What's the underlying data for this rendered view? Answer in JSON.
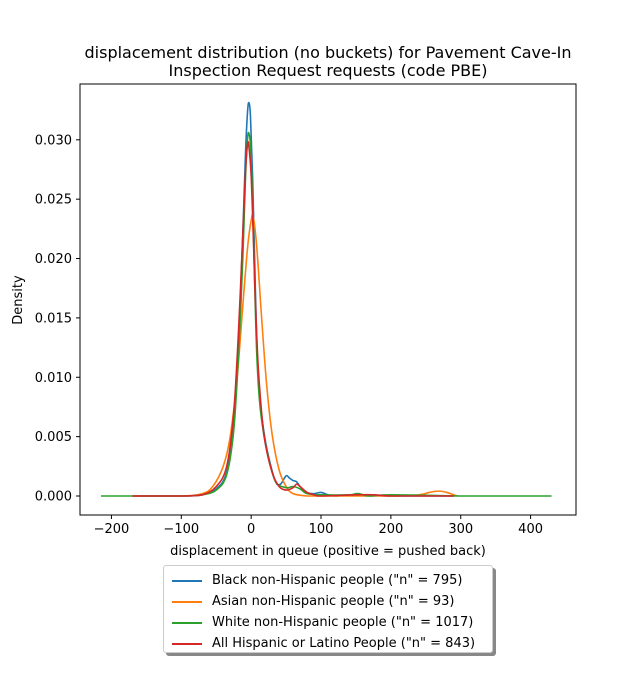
{
  "chart_data": {
    "type": "line",
    "title_line1": "displacement distribution (no buckets)  for Pavement Cave-In",
    "title_line2": "Inspection Request requests (code PBE)",
    "xlabel": "displacement in queue (positive = pushed back)",
    "ylabel": "Density",
    "xlim": [
      -245,
      465
    ],
    "ylim": [
      -0.0016,
      0.0347
    ],
    "xticks": [
      -200,
      -100,
      0,
      100,
      200,
      300,
      400
    ],
    "xtick_labels": [
      "−200",
      "−100",
      "0",
      "100",
      "200",
      "300",
      "400"
    ],
    "yticks": [
      0.0,
      0.005,
      0.01,
      0.015,
      0.02,
      0.025,
      0.03
    ],
    "ytick_labels": [
      "0.000",
      "0.005",
      "0.010",
      "0.015",
      "0.020",
      "0.025",
      "0.030"
    ],
    "legend_position": "below plot",
    "series": [
      {
        "name": "Black non-Hispanic people (\"n\" = 795)",
        "color": "#1f77b4",
        "x": [
          -170,
          -100,
          -70,
          -50,
          -35,
          -25,
          -18,
          -12,
          -8,
          -5,
          -3,
          -1,
          2,
          5,
          8,
          12,
          18,
          25,
          35,
          42,
          50,
          55,
          60,
          65,
          70,
          80,
          90,
          100,
          110,
          120,
          150,
          200,
          250,
          290
        ],
        "y": [
          0.0,
          0.0,
          0.0001,
          0.0006,
          0.002,
          0.006,
          0.013,
          0.022,
          0.029,
          0.0325,
          0.0331,
          0.032,
          0.027,
          0.02,
          0.013,
          0.0085,
          0.0055,
          0.0033,
          0.0012,
          0.001,
          0.0017,
          0.0015,
          0.0013,
          0.0012,
          0.0008,
          0.0003,
          0.0002,
          0.0003,
          0.0001,
          0.0,
          0.0001,
          0.0,
          0.0,
          0.0
        ]
      },
      {
        "name": "Asian non-Hispanic people (\"n\" = 93)",
        "color": "#ff7f0e",
        "x": [
          -170,
          -100,
          -70,
          -55,
          -40,
          -30,
          -20,
          -12,
          -5,
          0,
          3,
          8,
          15,
          22,
          30,
          40,
          50,
          60,
          80,
          100,
          150,
          200,
          240,
          255,
          265,
          272,
          280,
          290,
          295
        ],
        "y": [
          0.0,
          0.0,
          0.0002,
          0.0008,
          0.0025,
          0.005,
          0.01,
          0.016,
          0.021,
          0.0232,
          0.0235,
          0.021,
          0.015,
          0.0095,
          0.0052,
          0.0022,
          0.0008,
          0.0002,
          0.0,
          0.0,
          0.0,
          0.0,
          0.0001,
          0.0003,
          0.0004,
          0.0004,
          0.0003,
          0.0001,
          0.0
        ]
      },
      {
        "name": "White non-Hispanic people (\"n\" = 1017)",
        "color": "#2ca02c",
        "x": [
          -215,
          -150,
          -100,
          -70,
          -50,
          -35,
          -25,
          -18,
          -12,
          -8,
          -5,
          -3,
          -1,
          2,
          5,
          8,
          12,
          18,
          25,
          35,
          50,
          60,
          70,
          80,
          100,
          140,
          150,
          155,
          160,
          170,
          200,
          300,
          350,
          430
        ],
        "y": [
          0.0,
          0.0,
          0.0,
          0.0001,
          0.0005,
          0.0018,
          0.0055,
          0.012,
          0.02,
          0.027,
          0.0302,
          0.0305,
          0.0295,
          0.025,
          0.018,
          0.012,
          0.008,
          0.0052,
          0.0032,
          0.0012,
          0.0007,
          0.0008,
          0.0006,
          0.0002,
          0.0001,
          0.0001,
          0.0002,
          0.0002,
          0.0001,
          0.0,
          0.0001,
          0.0,
          0.0,
          0.0
        ]
      },
      {
        "name": "All Hispanic or Latino People (\"n\" = 843)",
        "color": "#d62728",
        "x": [
          -170,
          -100,
          -70,
          -50,
          -35,
          -25,
          -18,
          -12,
          -8,
          -5,
          -3,
          0,
          3,
          6,
          10,
          15,
          20,
          30,
          40,
          50,
          60,
          65,
          70,
          80,
          90,
          100,
          150,
          175,
          200,
          250,
          290
        ],
        "y": [
          0.0,
          0.0,
          0.0001,
          0.0008,
          0.0025,
          0.007,
          0.014,
          0.022,
          0.0275,
          0.0297,
          0.0293,
          0.027,
          0.022,
          0.0165,
          0.011,
          0.007,
          0.0045,
          0.002,
          0.0008,
          0.0005,
          0.0007,
          0.001,
          0.0008,
          0.0003,
          0.0001,
          0.0,
          0.0001,
          0.0001,
          0.0,
          0.0,
          0.0
        ]
      }
    ]
  }
}
